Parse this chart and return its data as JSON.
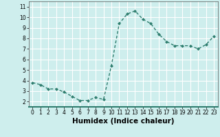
{
  "x": [
    0,
    1,
    2,
    3,
    4,
    5,
    6,
    7,
    8,
    9,
    10,
    11,
    12,
    13,
    14,
    15,
    16,
    17,
    18,
    19,
    20,
    21,
    22,
    23
  ],
  "y": [
    3.8,
    3.6,
    3.2,
    3.2,
    2.9,
    2.5,
    2.1,
    2.1,
    2.4,
    2.2,
    5.4,
    9.4,
    10.3,
    10.6,
    9.8,
    9.4,
    8.4,
    7.7,
    7.3,
    7.3,
    7.3,
    7.0,
    7.4,
    8.2
  ],
  "line_color": "#2e7d6e",
  "marker": "D",
  "marker_size": 2.0,
  "xlabel": "Humidex (Indice chaleur)",
  "ylim": [
    1.5,
    11.5
  ],
  "xlim": [
    -0.5,
    23.5
  ],
  "yticks": [
    2,
    3,
    4,
    5,
    6,
    7,
    8,
    9,
    10,
    11
  ],
  "xticks": [
    0,
    1,
    2,
    3,
    4,
    5,
    6,
    7,
    8,
    9,
    10,
    11,
    12,
    13,
    14,
    15,
    16,
    17,
    18,
    19,
    20,
    21,
    22,
    23
  ],
  "bg_color": "#ceeeed",
  "grid_color": "#ffffff",
  "tick_fontsize": 5.5,
  "xlabel_fontsize": 7.5,
  "line_width": 1.0
}
